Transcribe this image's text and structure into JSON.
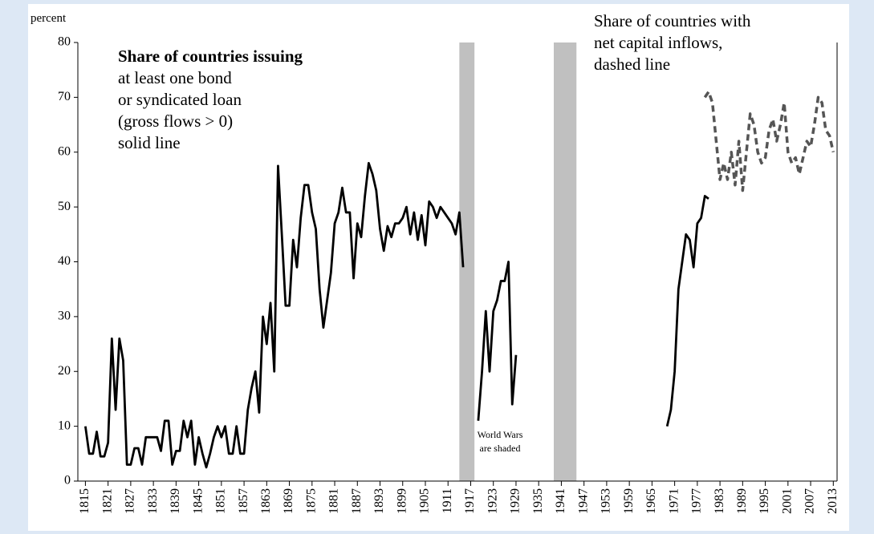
{
  "chart_data": {
    "type": "line",
    "y_label": "percent",
    "solid_label": {
      "highlight": "Share of countries issuing",
      "highlight_color": "#b3262a",
      "lines": [
        "at least one bond",
        "or syndicated loan",
        "(gross flows > 0)",
        "solid line"
      ]
    },
    "dashed_label": {
      "lines": [
        "Share of countries with",
        "net capital inflows,",
        "dashed line"
      ]
    },
    "shading_note": {
      "lines": [
        "World Wars",
        "are shaded"
      ]
    },
    "shaded_periods": [
      [
        1914,
        1918
      ],
      [
        1939,
        1945
      ]
    ],
    "shade_color": "#c0c0c0",
    "xlim": [
      1813,
      2014
    ],
    "ylim": [
      0,
      80
    ],
    "xticks": [
      1815,
      1821,
      1827,
      1833,
      1839,
      1845,
      1851,
      1857,
      1863,
      1869,
      1875,
      1881,
      1887,
      1893,
      1899,
      1905,
      1911,
      1917,
      1923,
      1929,
      1935,
      1941,
      1947,
      1953,
      1959,
      1965,
      1971,
      1977,
      1983,
      1989,
      1995,
      2001,
      2007,
      2013
    ],
    "yticks": [
      0,
      10,
      20,
      30,
      40,
      50,
      60,
      70,
      80
    ],
    "series": [
      {
        "color": "#000000",
        "dash": false,
        "x": [
          1815,
          1816,
          1817,
          1818,
          1819,
          1820,
          1821,
          1822,
          1823,
          1824,
          1825,
          1826,
          1827,
          1828,
          1829,
          1830,
          1831,
          1832,
          1833,
          1834,
          1835,
          1836,
          1837,
          1838,
          1839,
          1840,
          1841,
          1842,
          1843,
          1844,
          1845,
          1846,
          1847,
          1848,
          1849,
          1850,
          1851,
          1852,
          1853,
          1854,
          1855,
          1856,
          1857,
          1858,
          1859,
          1860,
          1861,
          1862,
          1863,
          1864,
          1865,
          1866,
          1867,
          1868,
          1869,
          1870,
          1871,
          1872,
          1873,
          1874,
          1875,
          1876,
          1877,
          1878,
          1879,
          1880,
          1881,
          1882,
          1883,
          1884,
          1885,
          1886,
          1887,
          1888,
          1889,
          1890,
          1891,
          1892,
          1893,
          1894,
          1895,
          1896,
          1897,
          1898,
          1899,
          1900,
          1901,
          1902,
          1903,
          1904,
          1905,
          1906,
          1907,
          1908,
          1909,
          1910,
          1911,
          1912,
          1913,
          1914,
          1915,
          1917,
          1919,
          1920,
          1921,
          1922,
          1923,
          1924,
          1925,
          1926,
          1927,
          1928,
          1929,
          1940,
          1969,
          1970,
          1971,
          1972,
          1973,
          1974,
          1975,
          1976,
          1977,
          1978,
          1979,
          1980
        ],
        "values": [
          10,
          5,
          5,
          9,
          4.5,
          4.5,
          7,
          26,
          13,
          26,
          22,
          3,
          3,
          6,
          6,
          3,
          8,
          8,
          8,
          8,
          5.5,
          11,
          11,
          3,
          5.5,
          5.5,
          11,
          8,
          11,
          3,
          8,
          5,
          2.5,
          5,
          8,
          10,
          8,
          10,
          5,
          5,
          10,
          5,
          5,
          13,
          17,
          20,
          12.5,
          30,
          25,
          32.5,
          20,
          57.5,
          45,
          32,
          32,
          44,
          39,
          48,
          54,
          54,
          49,
          46,
          35,
          28,
          33,
          38,
          47,
          49,
          53.5,
          49,
          49,
          37,
          47,
          44.5,
          52,
          58,
          56,
          53,
          46,
          42,
          46.5,
          44.5,
          47,
          47,
          48,
          50,
          45,
          49,
          44,
          48.5,
          43,
          51,
          50,
          48,
          50,
          49,
          48,
          47,
          45,
          49,
          39,
          null,
          11,
          20,
          31,
          20,
          31,
          33,
          36.5,
          36.5,
          40,
          14,
          23,
          null,
          10,
          13,
          20,
          35,
          40,
          45,
          44,
          39,
          47,
          48,
          52,
          51.5
        ]
      },
      {
        "color": "#555555",
        "dash": true,
        "x": [
          1979,
          1980,
          1981,
          1982,
          1983,
          1984,
          1985,
          1986,
          1987,
          1988,
          1989,
          1990,
          1991,
          1992,
          1993,
          1994,
          1995,
          1996,
          1997,
          1998,
          1999,
          2000,
          2001,
          2002,
          2003,
          2004,
          2005,
          2006,
          2007,
          2008,
          2009,
          2010,
          2011,
          2012,
          2013
        ],
        "values": [
          70,
          71,
          69,
          62,
          55,
          58,
          55,
          60,
          54,
          62,
          53,
          60,
          67,
          65,
          60,
          58,
          59,
          64,
          66,
          62,
          65,
          69,
          60,
          58,
          59,
          56,
          59,
          62,
          61,
          65,
          70,
          69,
          64,
          63,
          60
        ]
      }
    ]
  }
}
